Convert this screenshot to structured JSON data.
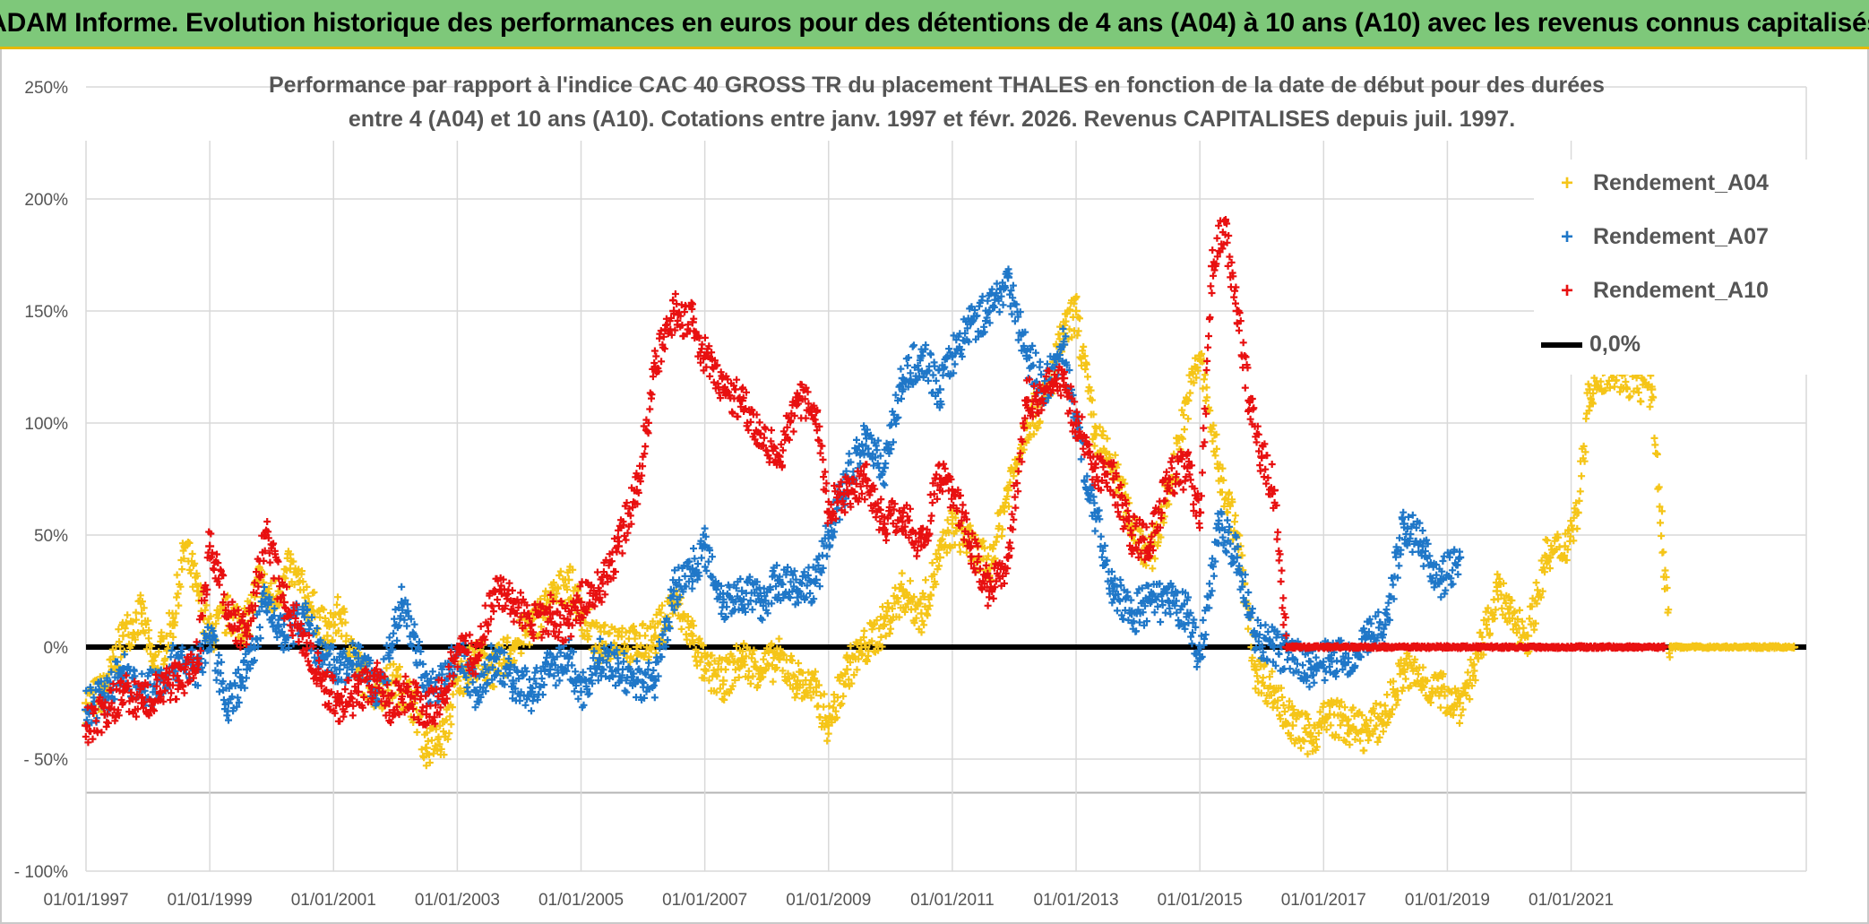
{
  "header": {
    "banner": "ADAM Informe. Evolution historique des performances en euros pour des détentions de 4 ans (A04) à 10 ans (A10) avec les revenus connus capitalisés"
  },
  "chart_data": {
    "type": "scatter",
    "title_line1": "Performance par rapport à l'indice CAC 40 GROSS TR  du placement THALES en fonction de la date de début pour des durées",
    "title_line2": "entre 4 (A04) et 10 ans (A10). Cotations entre janv. 1997 et févr. 2026. Revenus CAPITALISES depuis juil. 1997.",
    "xlabel": "",
    "ylabel": "",
    "xlim": [
      1997.0,
      2024.8
    ],
    "ylim": [
      -100,
      250
    ],
    "x_ticks": [
      1997,
      1999,
      2001,
      2003,
      2005,
      2007,
      2009,
      2011,
      2013,
      2015,
      2017,
      2019,
      2021
    ],
    "x_tick_labels": [
      "01/01/1997",
      "01/01/1999",
      "01/01/2001",
      "01/01/2003",
      "01/01/2005",
      "01/01/2007",
      "01/01/2009",
      "01/01/2011",
      "01/01/2013",
      "01/01/2015",
      "01/01/2017",
      "01/01/2019",
      "01/01/2021"
    ],
    "y_ticks": [
      -100,
      -50,
      0,
      50,
      100,
      150,
      200,
      250
    ],
    "y_tick_labels": [
      "- 100%",
      "- 50%",
      "0%",
      "50%",
      "100%",
      "150%",
      "200%",
      "250%"
    ],
    "grid": true,
    "legend_position": "top-right",
    "series": [
      {
        "name": "Rendement_A04",
        "color": "#f5c518",
        "marker": "+",
        "points": [
          [
            1997.0,
            -25
          ],
          [
            1997.3,
            -20
          ],
          [
            1997.6,
            5
          ],
          [
            1997.9,
            15
          ],
          [
            1998.1,
            -10
          ],
          [
            1998.4,
            10
          ],
          [
            1998.6,
            45
          ],
          [
            1998.8,
            25
          ],
          [
            1999.0,
            5
          ],
          [
            1999.3,
            15
          ],
          [
            1999.6,
            10
          ],
          [
            1999.8,
            30
          ],
          [
            2000.0,
            20
          ],
          [
            2000.3,
            35
          ],
          [
            2000.6,
            20
          ],
          [
            2000.9,
            5
          ],
          [
            2001.1,
            15
          ],
          [
            2001.4,
            -10
          ],
          [
            2001.7,
            -20
          ],
          [
            2002.0,
            -15
          ],
          [
            2002.3,
            -25
          ],
          [
            2002.5,
            -45
          ],
          [
            2002.8,
            -40
          ],
          [
            2003.0,
            -15
          ],
          [
            2003.3,
            -5
          ],
          [
            2003.6,
            -10
          ],
          [
            2003.9,
            0
          ],
          [
            2004.2,
            10
          ],
          [
            2004.5,
            20
          ],
          [
            2004.8,
            30
          ],
          [
            2005.0,
            15
          ],
          [
            2005.3,
            0
          ],
          [
            2005.6,
            5
          ],
          [
            2005.9,
            0
          ],
          [
            2006.2,
            5
          ],
          [
            2006.5,
            20
          ],
          [
            2006.8,
            5
          ],
          [
            2007.0,
            -10
          ],
          [
            2007.3,
            -15
          ],
          [
            2007.6,
            -5
          ],
          [
            2007.9,
            -10
          ],
          [
            2008.2,
            -5
          ],
          [
            2008.5,
            -15
          ],
          [
            2008.8,
            -20
          ],
          [
            2009.0,
            -35
          ],
          [
            2009.3,
            -10
          ],
          [
            2009.6,
            0
          ],
          [
            2009.9,
            10
          ],
          [
            2010.2,
            25
          ],
          [
            2010.5,
            15
          ],
          [
            2010.8,
            40
          ],
          [
            2011.0,
            55
          ],
          [
            2011.3,
            45
          ],
          [
            2011.6,
            35
          ],
          [
            2011.9,
            70
          ],
          [
            2012.2,
            100
          ],
          [
            2012.5,
            110
          ],
          [
            2012.8,
            140
          ],
          [
            2013.0,
            150
          ],
          [
            2013.3,
            95
          ],
          [
            2013.6,
            80
          ],
          [
            2013.9,
            55
          ],
          [
            2014.2,
            40
          ],
          [
            2014.5,
            70
          ],
          [
            2014.8,
            110
          ],
          [
            2015.0,
            130
          ],
          [
            2015.3,
            80
          ],
          [
            2015.6,
            50
          ],
          [
            2015.9,
            -10
          ],
          [
            2016.2,
            -20
          ],
          [
            2016.5,
            -35
          ],
          [
            2016.8,
            -40
          ],
          [
            2017.1,
            -30
          ],
          [
            2017.4,
            -35
          ],
          [
            2017.7,
            -38
          ],
          [
            2018.0,
            -30
          ],
          [
            2018.3,
            -10
          ],
          [
            2018.6,
            -15
          ],
          [
            2018.9,
            -20
          ],
          [
            2019.2,
            -25
          ],
          [
            2019.5,
            -5
          ],
          [
            2019.8,
            25
          ],
          [
            2020.0,
            15
          ],
          [
            2020.3,
            5
          ],
          [
            2020.6,
            40
          ],
          [
            2020.9,
            45
          ],
          [
            2021.1,
            60
          ],
          [
            2021.3,
            115
          ],
          [
            2021.6,
            125
          ],
          [
            2022.3,
            115
          ],
          [
            2022.6,
            0
          ],
          [
            2023.0,
            0
          ],
          [
            2023.5,
            0
          ],
          [
            2024.0,
            0
          ],
          [
            2024.6,
            0
          ]
        ]
      },
      {
        "name": "Rendement_A07",
        "color": "#1f77c8",
        "marker": "+",
        "points": [
          [
            1997.0,
            -28
          ],
          [
            1997.3,
            -22
          ],
          [
            1997.6,
            -10
          ],
          [
            1997.9,
            -20
          ],
          [
            1998.2,
            -15
          ],
          [
            1998.5,
            -5
          ],
          [
            1998.8,
            -10
          ],
          [
            1999.0,
            5
          ],
          [
            1999.3,
            -25
          ],
          [
            1999.6,
            -10
          ],
          [
            1999.9,
            20
          ],
          [
            2000.2,
            5
          ],
          [
            2000.5,
            15
          ],
          [
            2000.8,
            -5
          ],
          [
            2001.1,
            -10
          ],
          [
            2001.4,
            -5
          ],
          [
            2001.7,
            -20
          ],
          [
            2001.9,
            -5
          ],
          [
            2002.1,
            20
          ],
          [
            2002.3,
            5
          ],
          [
            2002.5,
            -20
          ],
          [
            2002.8,
            -15
          ],
          [
            2003.0,
            0
          ],
          [
            2003.3,
            -20
          ],
          [
            2003.6,
            -5
          ],
          [
            2003.9,
            -15
          ],
          [
            2004.2,
            -20
          ],
          [
            2004.5,
            -10
          ],
          [
            2004.8,
            -5
          ],
          [
            2005.0,
            -20
          ],
          [
            2005.3,
            -5
          ],
          [
            2005.6,
            -10
          ],
          [
            2005.9,
            -15
          ],
          [
            2006.2,
            -15
          ],
          [
            2006.5,
            25
          ],
          [
            2006.8,
            35
          ],
          [
            2007.0,
            45
          ],
          [
            2007.3,
            20
          ],
          [
            2007.6,
            25
          ],
          [
            2007.9,
            20
          ],
          [
            2008.2,
            30
          ],
          [
            2008.5,
            25
          ],
          [
            2008.8,
            30
          ],
          [
            2009.0,
            50
          ],
          [
            2009.3,
            75
          ],
          [
            2009.6,
            95
          ],
          [
            2009.9,
            80
          ],
          [
            2010.2,
            120
          ],
          [
            2010.5,
            130
          ],
          [
            2010.8,
            115
          ],
          [
            2011.0,
            130
          ],
          [
            2011.3,
            145
          ],
          [
            2011.6,
            150
          ],
          [
            2011.9,
            165
          ],
          [
            2012.2,
            130
          ],
          [
            2012.5,
            115
          ],
          [
            2012.8,
            135
          ],
          [
            2013.0,
            100
          ],
          [
            2013.3,
            60
          ],
          [
            2013.6,
            25
          ],
          [
            2013.9,
            15
          ],
          [
            2014.2,
            20
          ],
          [
            2014.5,
            20
          ],
          [
            2014.8,
            15
          ],
          [
            2015.0,
            -5
          ],
          [
            2015.3,
            55
          ],
          [
            2015.6,
            40
          ],
          [
            2015.9,
            5
          ],
          [
            2016.2,
            0
          ],
          [
            2016.5,
            -5
          ],
          [
            2016.8,
            -10
          ],
          [
            2017.1,
            -5
          ],
          [
            2017.4,
            -5
          ],
          [
            2017.7,
            5
          ],
          [
            2018.0,
            10
          ],
          [
            2018.3,
            55
          ],
          [
            2018.6,
            45
          ],
          [
            2018.9,
            30
          ],
          [
            2019.2,
            40
          ]
        ]
      },
      {
        "name": "Rendement_A10",
        "color": "#e81010",
        "marker": "+",
        "points": [
          [
            1997.0,
            -35
          ],
          [
            1997.3,
            -30
          ],
          [
            1997.6,
            -20
          ],
          [
            1997.9,
            -25
          ],
          [
            1998.2,
            -20
          ],
          [
            1998.5,
            -15
          ],
          [
            1998.8,
            -5
          ],
          [
            1999.0,
            45
          ],
          [
            1999.3,
            15
          ],
          [
            1999.6,
            5
          ],
          [
            1999.9,
            50
          ],
          [
            2000.2,
            20
          ],
          [
            2000.5,
            5
          ],
          [
            2000.8,
            -15
          ],
          [
            2001.1,
            -25
          ],
          [
            2001.4,
            -20
          ],
          [
            2001.7,
            -15
          ],
          [
            2001.9,
            -25
          ],
          [
            2002.2,
            -20
          ],
          [
            2002.5,
            -30
          ],
          [
            2002.8,
            -20
          ],
          [
            2003.0,
            0
          ],
          [
            2003.3,
            -5
          ],
          [
            2003.6,
            25
          ],
          [
            2003.9,
            20
          ],
          [
            2004.2,
            10
          ],
          [
            2004.5,
            15
          ],
          [
            2004.8,
            10
          ],
          [
            2005.0,
            20
          ],
          [
            2005.3,
            25
          ],
          [
            2005.6,
            45
          ],
          [
            2005.9,
            70
          ],
          [
            2006.2,
            125
          ],
          [
            2006.5,
            150
          ],
          [
            2006.8,
            145
          ],
          [
            2007.0,
            130
          ],
          [
            2007.3,
            115
          ],
          [
            2007.6,
            110
          ],
          [
            2007.9,
            95
          ],
          [
            2008.2,
            85
          ],
          [
            2008.5,
            110
          ],
          [
            2008.8,
            105
          ],
          [
            2009.0,
            60
          ],
          [
            2009.3,
            70
          ],
          [
            2009.6,
            75
          ],
          [
            2009.9,
            55
          ],
          [
            2010.2,
            60
          ],
          [
            2010.5,
            45
          ],
          [
            2010.8,
            75
          ],
          [
            2011.0,
            70
          ],
          [
            2011.3,
            45
          ],
          [
            2011.6,
            25
          ],
          [
            2011.9,
            40
          ],
          [
            2012.2,
            110
          ],
          [
            2012.5,
            115
          ],
          [
            2012.8,
            120
          ],
          [
            2013.0,
            100
          ],
          [
            2013.3,
            80
          ],
          [
            2013.6,
            75
          ],
          [
            2013.9,
            50
          ],
          [
            2014.2,
            45
          ],
          [
            2014.5,
            75
          ],
          [
            2014.8,
            80
          ],
          [
            2015.0,
            60
          ],
          [
            2015.2,
            170
          ],
          [
            2015.4,
            190
          ],
          [
            2015.6,
            150
          ],
          [
            2015.8,
            110
          ],
          [
            2016.0,
            85
          ],
          [
            2016.2,
            70
          ],
          [
            2016.4,
            0
          ],
          [
            2017.0,
            0
          ],
          [
            2017.5,
            0
          ],
          [
            2018.0,
            0
          ],
          [
            2018.5,
            0
          ],
          [
            2019.0,
            0
          ],
          [
            2019.5,
            0
          ],
          [
            2020.0,
            0
          ],
          [
            2020.5,
            0
          ],
          [
            2021.0,
            0
          ],
          [
            2021.5,
            0
          ],
          [
            2022.0,
            0
          ],
          [
            2022.5,
            0
          ]
        ]
      },
      {
        "name": "0,0%",
        "color": "#000000",
        "type": "line",
        "points": [
          [
            1997.0,
            0
          ],
          [
            2024.8,
            0
          ]
        ]
      }
    ]
  },
  "legend": {
    "items": [
      {
        "label": "Rendement_A04",
        "color": "#f5c518",
        "marker": "+"
      },
      {
        "label": "Rendement_A07",
        "color": "#1f77c8",
        "marker": "+"
      },
      {
        "label": "Rendement_A10",
        "color": "#e81010",
        "marker": "+"
      },
      {
        "label": "0,0%",
        "color": "#000000",
        "marker": "line"
      }
    ]
  }
}
